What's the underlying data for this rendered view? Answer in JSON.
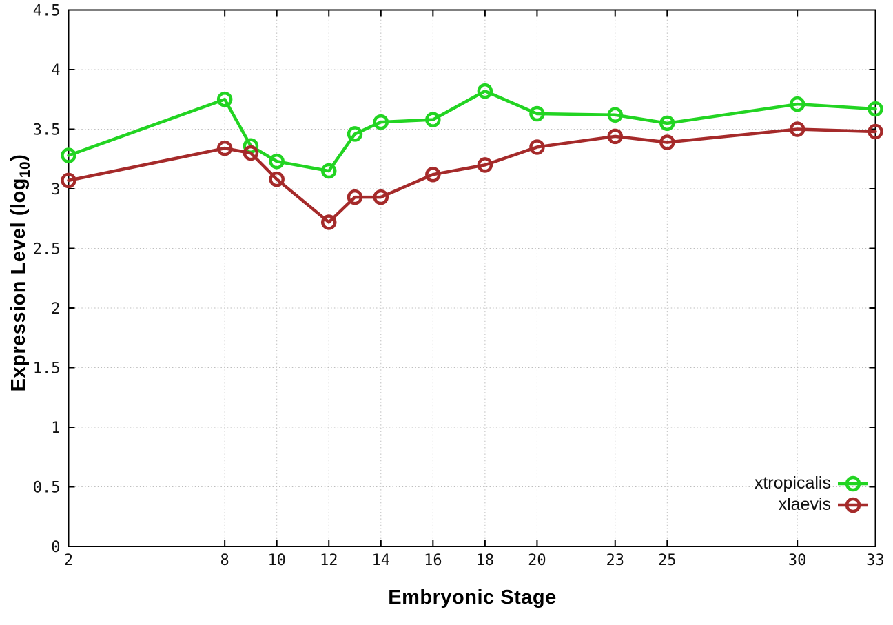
{
  "chart_data": {
    "type": "line",
    "title": "",
    "xlabel": "Embryonic Stage",
    "ylabel": {
      "main": "Expression Level (log",
      "sub": "10",
      "end": ")"
    },
    "x": [
      2,
      8,
      9,
      10,
      12,
      13,
      14,
      16,
      18,
      20,
      23,
      25,
      30,
      33
    ],
    "series": [
      {
        "name": "xtropicalis",
        "color": "#22d422",
        "values": [
          3.28,
          3.75,
          3.36,
          3.23,
          3.15,
          3.46,
          3.56,
          3.58,
          3.82,
          3.63,
          3.62,
          3.55,
          3.71,
          3.67
        ]
      },
      {
        "name": "xlaevis",
        "color": "#a52a2a",
        "values": [
          3.07,
          3.34,
          3.3,
          3.08,
          2.72,
          2.93,
          2.93,
          3.12,
          3.2,
          3.35,
          3.44,
          3.39,
          3.5,
          3.48
        ]
      }
    ],
    "xlim": [
      2,
      33
    ],
    "ylim": [
      0,
      4.5
    ],
    "xticks": {
      "values": [
        2,
        8,
        10,
        12,
        14,
        16,
        18,
        20,
        23,
        25,
        30,
        33
      ],
      "labels": [
        "2",
        "8",
        "10",
        "12",
        "14",
        "16",
        "18",
        "20",
        "23",
        "25",
        "30",
        "33"
      ]
    },
    "yticks": {
      "values": [
        0,
        0.5,
        1,
        1.5,
        2,
        2.5,
        3,
        3.5,
        4,
        4.5
      ],
      "labels": [
        "0",
        "0.5",
        "1",
        "1.5",
        "2",
        "2.5",
        "3",
        "3.5",
        "4",
        "4.5"
      ]
    },
    "grid": "dotted",
    "grid_color": "#bdbdbd",
    "axis_color": "#000000",
    "background": "#ffffff",
    "marker": "open-circle",
    "legend_position": "inside-bottom-right",
    "legend_entries": [
      "xtropicalis",
      "xlaevis"
    ]
  }
}
